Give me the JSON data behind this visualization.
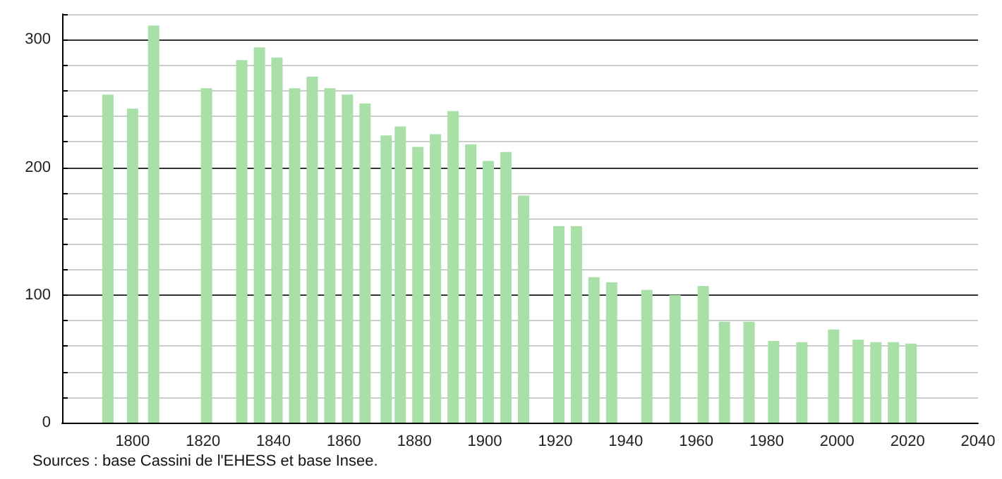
{
  "chart_data": {
    "type": "bar",
    "x": [
      1793,
      1800,
      1806,
      1821,
      1831,
      1836,
      1841,
      1846,
      1851,
      1856,
      1861,
      1866,
      1872,
      1876,
      1881,
      1886,
      1891,
      1896,
      1901,
      1906,
      1911,
      1921,
      1926,
      1931,
      1936,
      1946,
      1954,
      1962,
      1968,
      1975,
      1982,
      1990,
      1999,
      2006,
      2011,
      2016,
      2021
    ],
    "values": [
      257,
      246,
      311,
      262,
      284,
      294,
      286,
      262,
      271,
      262,
      257,
      250,
      225,
      232,
      216,
      226,
      244,
      218,
      205,
      212,
      178,
      154,
      154,
      114,
      110,
      104,
      100,
      107,
      79,
      79,
      64,
      63,
      73,
      65,
      63,
      63,
      62
    ],
    "color": "#a8e0a8",
    "xlim": [
      1780,
      2040
    ],
    "xticks": [
      1800,
      1820,
      1840,
      1860,
      1880,
      1900,
      1920,
      1940,
      1960,
      1980,
      2000,
      2020,
      2040
    ],
    "ylim": [
      0,
      320
    ],
    "yticks": [
      0,
      {
        "value": 20,
        "label": null
      },
      {
        "value": 40,
        "label": null
      },
      {
        "value": 60,
        "label": null
      },
      {
        "value": 80,
        "label": null
      },
      100,
      {
        "value": 120,
        "label": null
      },
      {
        "value": 140,
        "label": null
      },
      {
        "value": 160,
        "label": null
      },
      {
        "value": 180,
        "label": null
      },
      200,
      {
        "value": 220,
        "label": null
      },
      {
        "value": 240,
        "label": null
      },
      {
        "value": 260,
        "label": null
      },
      {
        "value": 280,
        "label": null
      },
      300,
      {
        "value": 320,
        "label": null
      }
    ],
    "grid": "y",
    "annotations": [
      "Sources : base Cassini de l'EHESS et base Insee."
    ]
  }
}
